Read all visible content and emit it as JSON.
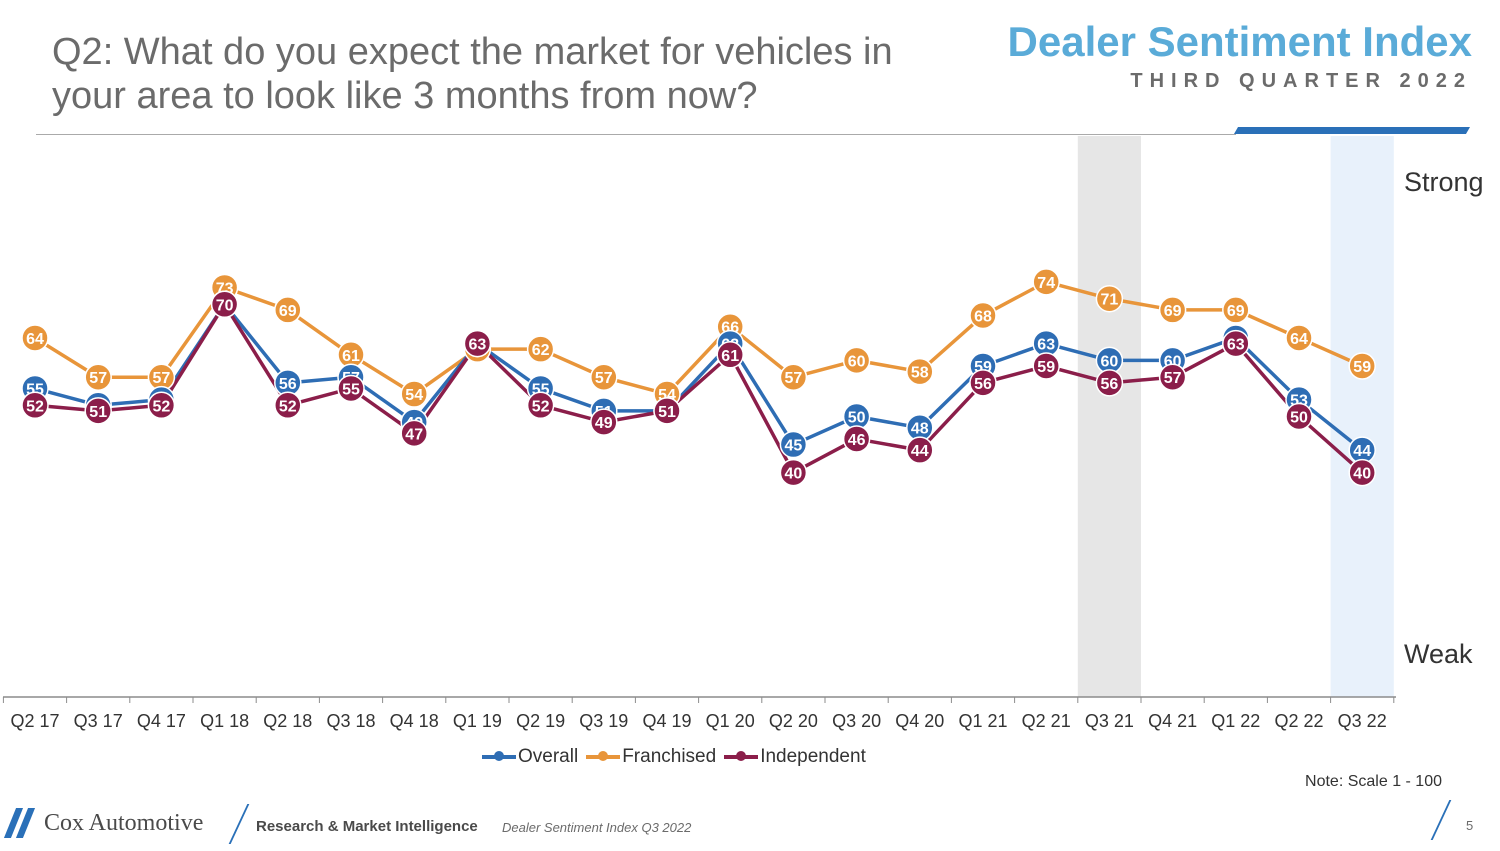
{
  "header": {
    "question": "Q2: What do you expect the market for vehicles in your area to look like 3 months from now?",
    "brand_title": "Dealer Sentiment Index",
    "brand_subtitle": "THIRD QUARTER 2022"
  },
  "chart_data": {
    "type": "line",
    "categories": [
      "Q2 17",
      "Q3 17",
      "Q4 17",
      "Q1 18",
      "Q2 18",
      "Q3 18",
      "Q4 18",
      "Q1 19",
      "Q2 19",
      "Q3 19",
      "Q4 19",
      "Q1 20",
      "Q2 20",
      "Q3 20",
      "Q4 20",
      "Q1 21",
      "Q2 21",
      "Q3 21",
      "Q4 21",
      "Q1 22",
      "Q2 22",
      "Q3 22"
    ],
    "series": [
      {
        "name": "Overall",
        "color": "#2e6db4",
        "values": [
          55,
          52,
          53,
          70,
          56,
          57,
          49,
          63,
          55,
          51,
          51,
          63,
          45,
          50,
          48,
          59,
          63,
          60,
          60,
          64,
          53,
          44
        ]
      },
      {
        "name": "Franchised",
        "color": "#e8953a",
        "values": [
          64,
          57,
          57,
          73,
          69,
          61,
          54,
          62,
          62,
          57,
          54,
          66,
          57,
          60,
          58,
          68,
          74,
          71,
          69,
          69,
          64,
          59
        ]
      },
      {
        "name": "Independent",
        "color": "#8b1e4a",
        "values": [
          52,
          51,
          52,
          70,
          52,
          55,
          47,
          63,
          52,
          49,
          51,
          61,
          40,
          46,
          44,
          56,
          59,
          56,
          57,
          63,
          50,
          40
        ]
      }
    ],
    "ylim": [
      0,
      100
    ],
    "y_end_labels": {
      "top": "Strong",
      "bottom": "Weak"
    },
    "highlighted_categories": [
      {
        "category": "Q3 21",
        "color": "#e6e6e6"
      },
      {
        "category": "Q3 22",
        "color": "#e8f1fb"
      }
    ],
    "legend_position": "bottom",
    "note": "Note: Scale 1 - 100"
  },
  "footer": {
    "company": "Cox Automotive",
    "division": "Research & Market Intelligence",
    "report": "Dealer Sentiment Index Q3 2022",
    "page": "5"
  }
}
